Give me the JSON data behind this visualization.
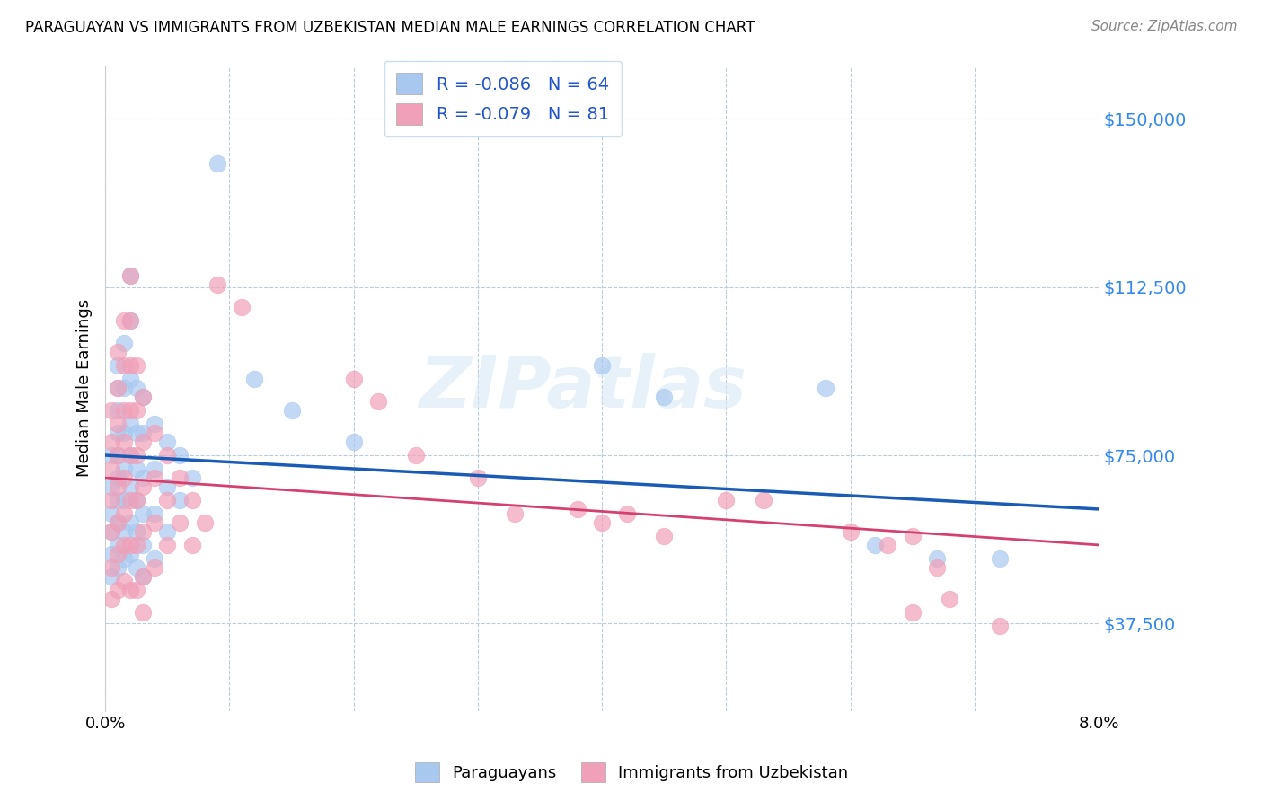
{
  "title": "PARAGUAYAN VS IMMIGRANTS FROM UZBEKISTAN MEDIAN MALE EARNINGS CORRELATION CHART",
  "source": "Source: ZipAtlas.com",
  "ylabel": "Median Male Earnings",
  "xlim": [
    0.0,
    0.08
  ],
  "ylim": [
    18000,
    162000
  ],
  "yticks": [
    37500,
    75000,
    112500,
    150000
  ],
  "ytick_labels": [
    "$37,500",
    "$75,000",
    "$112,500",
    "$150,000"
  ],
  "xticks": [
    0.0,
    0.01,
    0.02,
    0.03,
    0.04,
    0.05,
    0.06,
    0.07,
    0.08
  ],
  "xtick_labels": [
    "0.0%",
    "",
    "",
    "",
    "",
    "",
    "",
    "",
    "8.0%"
  ],
  "blue_color": "#A8C8F0",
  "pink_color": "#F0A0B8",
  "blue_line_color": "#1A5BB5",
  "pink_line_color": "#D44070",
  "watermark": "ZIPatlas",
  "blue_scatter": [
    [
      0.0005,
      75000
    ],
    [
      0.0005,
      68000
    ],
    [
      0.0005,
      62000
    ],
    [
      0.0005,
      58000
    ],
    [
      0.0005,
      53000
    ],
    [
      0.0005,
      48000
    ],
    [
      0.001,
      95000
    ],
    [
      0.001,
      90000
    ],
    [
      0.001,
      85000
    ],
    [
      0.001,
      80000
    ],
    [
      0.001,
      75000
    ],
    [
      0.001,
      70000
    ],
    [
      0.001,
      65000
    ],
    [
      0.001,
      60000
    ],
    [
      0.001,
      55000
    ],
    [
      0.001,
      50000
    ],
    [
      0.0015,
      100000
    ],
    [
      0.0015,
      90000
    ],
    [
      0.0015,
      80000
    ],
    [
      0.0015,
      72000
    ],
    [
      0.0015,
      65000
    ],
    [
      0.0015,
      58000
    ],
    [
      0.0015,
      52000
    ],
    [
      0.002,
      115000
    ],
    [
      0.002,
      105000
    ],
    [
      0.002,
      92000
    ],
    [
      0.002,
      82000
    ],
    [
      0.002,
      75000
    ],
    [
      0.002,
      68000
    ],
    [
      0.002,
      60000
    ],
    [
      0.002,
      53000
    ],
    [
      0.0025,
      90000
    ],
    [
      0.0025,
      80000
    ],
    [
      0.0025,
      72000
    ],
    [
      0.0025,
      65000
    ],
    [
      0.0025,
      58000
    ],
    [
      0.0025,
      50000
    ],
    [
      0.003,
      88000
    ],
    [
      0.003,
      80000
    ],
    [
      0.003,
      70000
    ],
    [
      0.003,
      62000
    ],
    [
      0.003,
      55000
    ],
    [
      0.003,
      48000
    ],
    [
      0.004,
      82000
    ],
    [
      0.004,
      72000
    ],
    [
      0.004,
      62000
    ],
    [
      0.004,
      52000
    ],
    [
      0.005,
      78000
    ],
    [
      0.005,
      68000
    ],
    [
      0.005,
      58000
    ],
    [
      0.006,
      75000
    ],
    [
      0.006,
      65000
    ],
    [
      0.007,
      70000
    ],
    [
      0.009,
      140000
    ],
    [
      0.012,
      92000
    ],
    [
      0.015,
      85000
    ],
    [
      0.02,
      78000
    ],
    [
      0.04,
      95000
    ],
    [
      0.045,
      88000
    ],
    [
      0.058,
      90000
    ],
    [
      0.062,
      55000
    ],
    [
      0.067,
      52000
    ],
    [
      0.072,
      52000
    ]
  ],
  "pink_scatter": [
    [
      0.0005,
      85000
    ],
    [
      0.0005,
      78000
    ],
    [
      0.0005,
      72000
    ],
    [
      0.0005,
      65000
    ],
    [
      0.0005,
      58000
    ],
    [
      0.0005,
      50000
    ],
    [
      0.0005,
      43000
    ],
    [
      0.001,
      98000
    ],
    [
      0.001,
      90000
    ],
    [
      0.001,
      82000
    ],
    [
      0.001,
      75000
    ],
    [
      0.001,
      68000
    ],
    [
      0.001,
      60000
    ],
    [
      0.001,
      53000
    ],
    [
      0.001,
      45000
    ],
    [
      0.0015,
      105000
    ],
    [
      0.0015,
      95000
    ],
    [
      0.0015,
      85000
    ],
    [
      0.0015,
      78000
    ],
    [
      0.0015,
      70000
    ],
    [
      0.0015,
      62000
    ],
    [
      0.0015,
      55000
    ],
    [
      0.0015,
      47000
    ],
    [
      0.002,
      115000
    ],
    [
      0.002,
      105000
    ],
    [
      0.002,
      95000
    ],
    [
      0.002,
      85000
    ],
    [
      0.002,
      75000
    ],
    [
      0.002,
      65000
    ],
    [
      0.002,
      55000
    ],
    [
      0.002,
      45000
    ],
    [
      0.0025,
      95000
    ],
    [
      0.0025,
      85000
    ],
    [
      0.0025,
      75000
    ],
    [
      0.0025,
      65000
    ],
    [
      0.0025,
      55000
    ],
    [
      0.0025,
      45000
    ],
    [
      0.003,
      88000
    ],
    [
      0.003,
      78000
    ],
    [
      0.003,
      68000
    ],
    [
      0.003,
      58000
    ],
    [
      0.003,
      48000
    ],
    [
      0.003,
      40000
    ],
    [
      0.004,
      80000
    ],
    [
      0.004,
      70000
    ],
    [
      0.004,
      60000
    ],
    [
      0.004,
      50000
    ],
    [
      0.005,
      75000
    ],
    [
      0.005,
      65000
    ],
    [
      0.005,
      55000
    ],
    [
      0.006,
      70000
    ],
    [
      0.006,
      60000
    ],
    [
      0.007,
      65000
    ],
    [
      0.007,
      55000
    ],
    [
      0.008,
      60000
    ],
    [
      0.009,
      113000
    ],
    [
      0.011,
      108000
    ],
    [
      0.02,
      92000
    ],
    [
      0.022,
      87000
    ],
    [
      0.025,
      75000
    ],
    [
      0.03,
      70000
    ],
    [
      0.033,
      62000
    ],
    [
      0.038,
      63000
    ],
    [
      0.04,
      60000
    ],
    [
      0.042,
      62000
    ],
    [
      0.045,
      57000
    ],
    [
      0.05,
      65000
    ],
    [
      0.053,
      65000
    ],
    [
      0.06,
      58000
    ],
    [
      0.063,
      55000
    ],
    [
      0.065,
      40000
    ],
    [
      0.067,
      50000
    ],
    [
      0.068,
      43000
    ],
    [
      0.072,
      37000
    ],
    [
      0.065,
      57000
    ]
  ]
}
